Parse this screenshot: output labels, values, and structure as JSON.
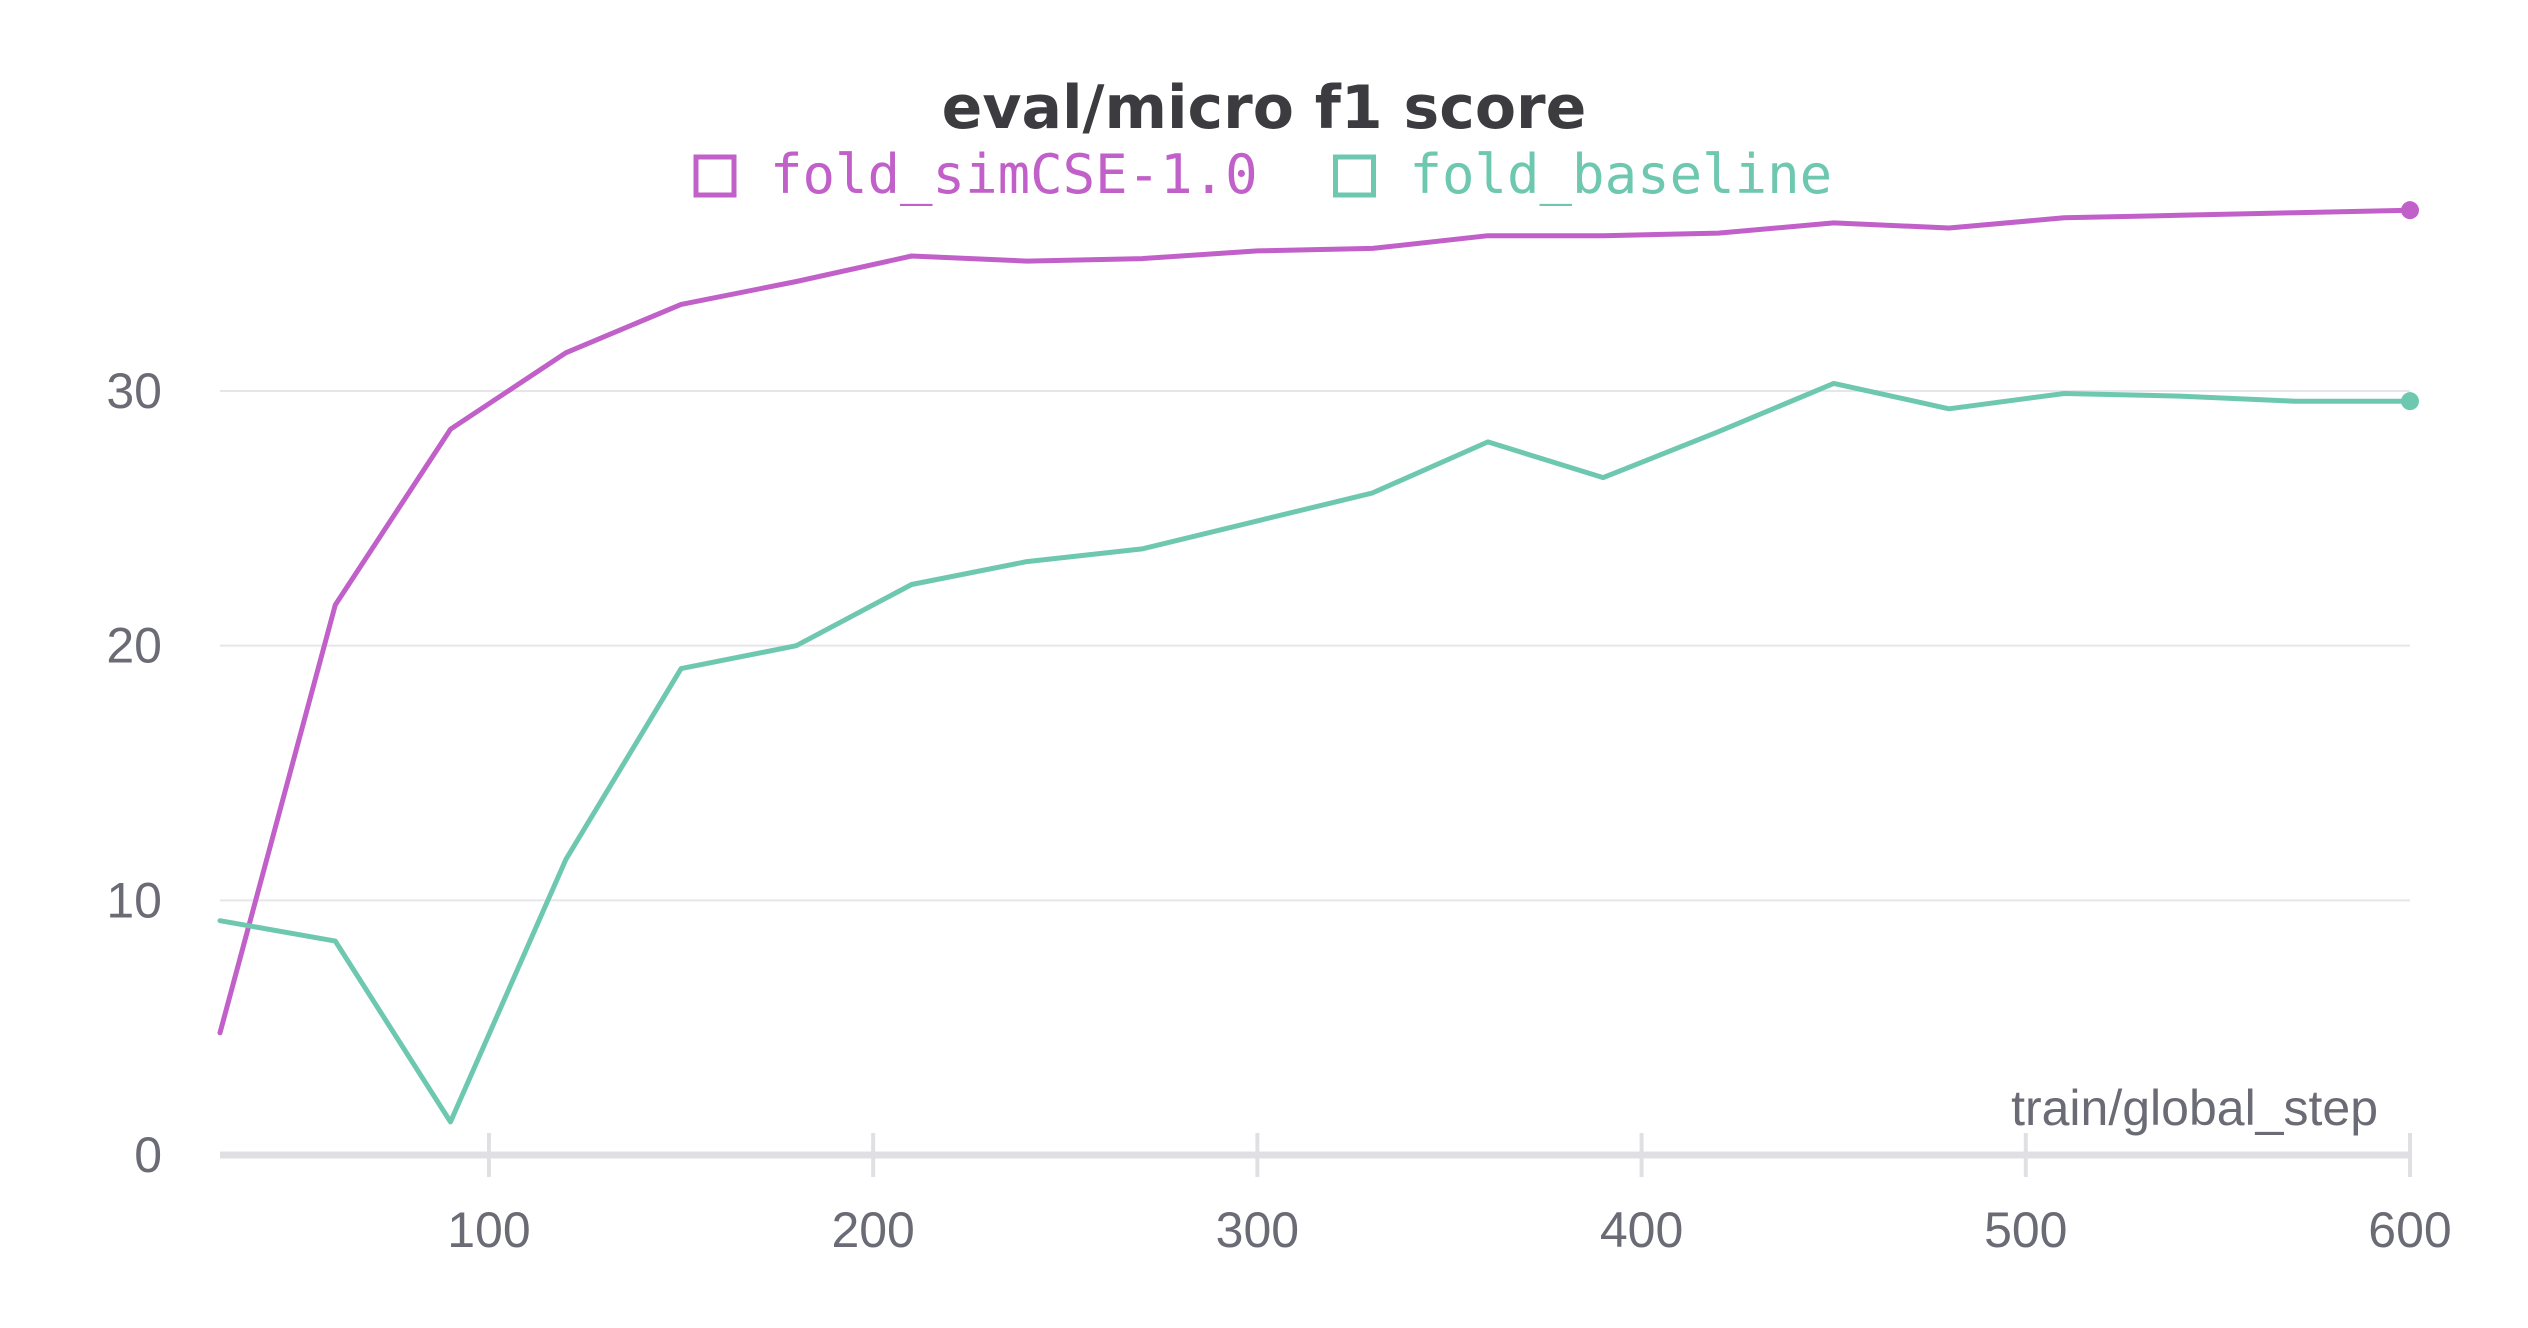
{
  "chart_data": {
    "type": "line",
    "title": "eval/micro f1 score",
    "xlabel": "train/global_step",
    "ylabel": "",
    "xlim": [
      30,
      600
    ],
    "ylim": [
      0,
      37.5
    ],
    "x_ticks": [
      100,
      200,
      300,
      400,
      500,
      600
    ],
    "y_ticks": [
      0,
      10,
      20,
      30
    ],
    "grid": true,
    "legend_position": "top-center",
    "series": [
      {
        "name": "fold_simCSE-1.0",
        "color": "#c060c8",
        "x": [
          30,
          60,
          90,
          120,
          150,
          180,
          210,
          240,
          270,
          300,
          330,
          360,
          390,
          420,
          450,
          480,
          510,
          540,
          570,
          600
        ],
        "values": [
          4.8,
          21.6,
          28.5,
          31.5,
          33.4,
          34.3,
          35.3,
          35.1,
          35.2,
          35.5,
          35.6,
          36.1,
          36.1,
          36.2,
          36.6,
          36.4,
          36.8,
          36.9,
          37.0,
          37.1
        ]
      },
      {
        "name": "fold_baseline",
        "color": "#6ec8b0",
        "x": [
          30,
          60,
          90,
          120,
          150,
          180,
          210,
          240,
          270,
          300,
          330,
          360,
          390,
          420,
          450,
          480,
          510,
          540,
          570,
          600
        ],
        "values": [
          9.2,
          8.4,
          1.3,
          11.6,
          19.1,
          20.0,
          22.4,
          23.3,
          23.8,
          24.9,
          26.0,
          28.0,
          26.6,
          28.4,
          30.3,
          29.3,
          29.9,
          29.8,
          29.6,
          29.6
        ]
      }
    ]
  }
}
